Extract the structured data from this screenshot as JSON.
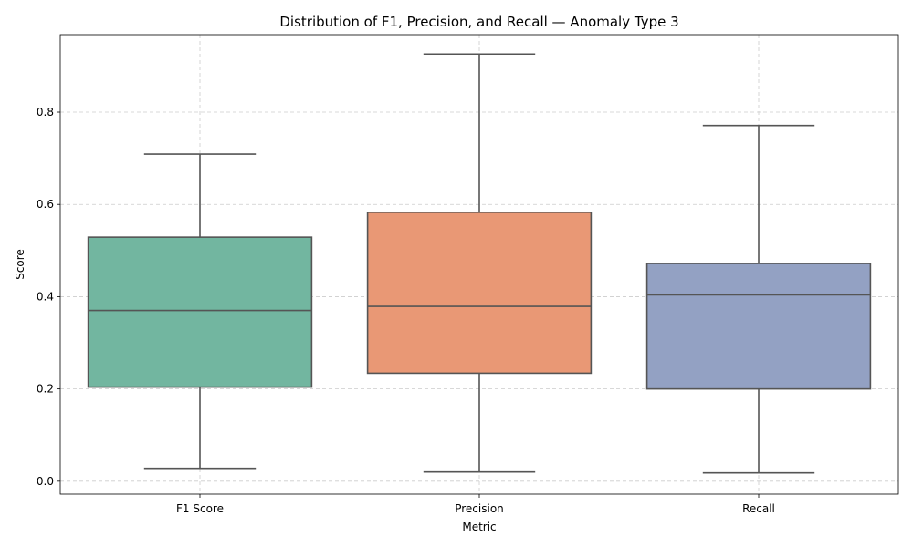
{
  "chart_data": {
    "type": "box",
    "title": "Distribution of F1, Precision, and Recall — Anomaly Type 3",
    "xlabel": "Metric",
    "ylabel": "Score",
    "ylim": [
      -0.028,
      0.968
    ],
    "yticks": [
      0.0,
      0.2,
      0.4,
      0.6,
      0.8
    ],
    "ytick_labels": [
      "0.0",
      "0.2",
      "0.4",
      "0.6",
      "0.8"
    ],
    "grid": true,
    "categories": [
      "F1 Score",
      "Precision",
      "Recall"
    ],
    "boxes": [
      {
        "label": "F1 Score",
        "whisker_low": 0.028,
        "q1": 0.204,
        "median": 0.37,
        "q3": 0.529,
        "whisker_high": 0.709,
        "color": "#72b6a0"
      },
      {
        "label": "Precision",
        "whisker_low": 0.02,
        "q1": 0.234,
        "median": 0.379,
        "q3": 0.583,
        "whisker_high": 0.926,
        "color": "#e99875"
      },
      {
        "label": "Recall",
        "whisker_low": 0.018,
        "q1": 0.2,
        "median": 0.404,
        "q3": 0.472,
        "whisker_high": 0.771,
        "color": "#93a1c3"
      }
    ]
  }
}
